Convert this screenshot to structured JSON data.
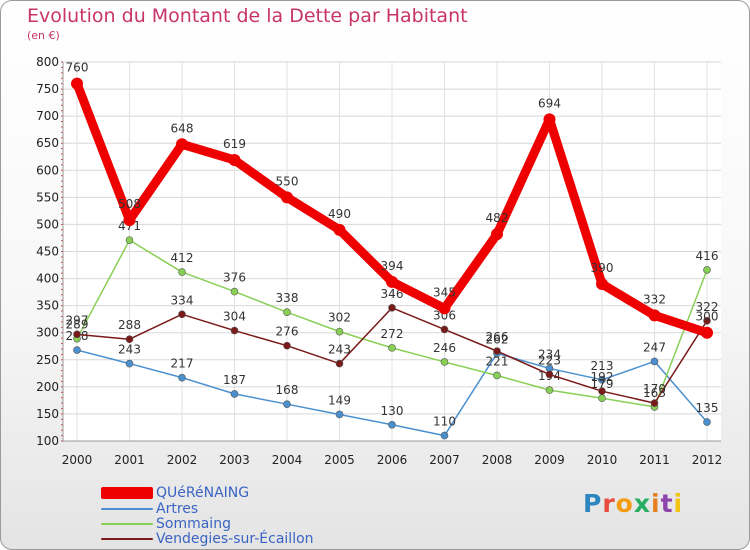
{
  "chart_data": {
    "type": "line",
    "title": "Evolution du Montant de la Dette par Habitant",
    "subtitle": "(en €)",
    "x": [
      "2000",
      "2001",
      "2002",
      "2003",
      "2004",
      "2005",
      "2006",
      "2007",
      "2008",
      "2009",
      "2010",
      "2011",
      "2012"
    ],
    "ylim": [
      100,
      800
    ],
    "yticks": [
      100,
      150,
      200,
      250,
      300,
      350,
      400,
      450,
      500,
      550,
      600,
      650,
      700,
      750,
      800
    ],
    "grid": true,
    "legend_position": "bottom-left",
    "series": [
      {
        "name": "QUÉRÉNAING",
        "color": "#ee0000",
        "values": [
          760,
          508,
          648,
          619,
          550,
          490,
          394,
          345,
          482,
          694,
          390,
          332,
          300
        ]
      },
      {
        "name": "Artres",
        "color": "#4a90d0",
        "values": [
          268,
          243,
          217,
          187,
          168,
          149,
          130,
          110,
          262,
          234,
          213,
          247,
          135
        ]
      },
      {
        "name": "Sommaing",
        "color": "#88d055",
        "values": [
          289,
          471,
          412,
          376,
          338,
          302,
          272,
          246,
          221,
          194,
          179,
          163,
          416
        ]
      },
      {
        "name": "Vendegies-sur-Écaillon",
        "color": "#7a1a1a",
        "values": [
          297,
          288,
          334,
          304,
          276,
          243,
          346,
          306,
          266,
          223,
          192,
          170,
          322
        ]
      }
    ]
  },
  "legend_labels": {
    "s0": "QUéRéNAING",
    "s1": "Artres",
    "s2": "Sommaing",
    "s3": "Vendegies-sur-Écaillon"
  },
  "logo_text": "Proxiti"
}
